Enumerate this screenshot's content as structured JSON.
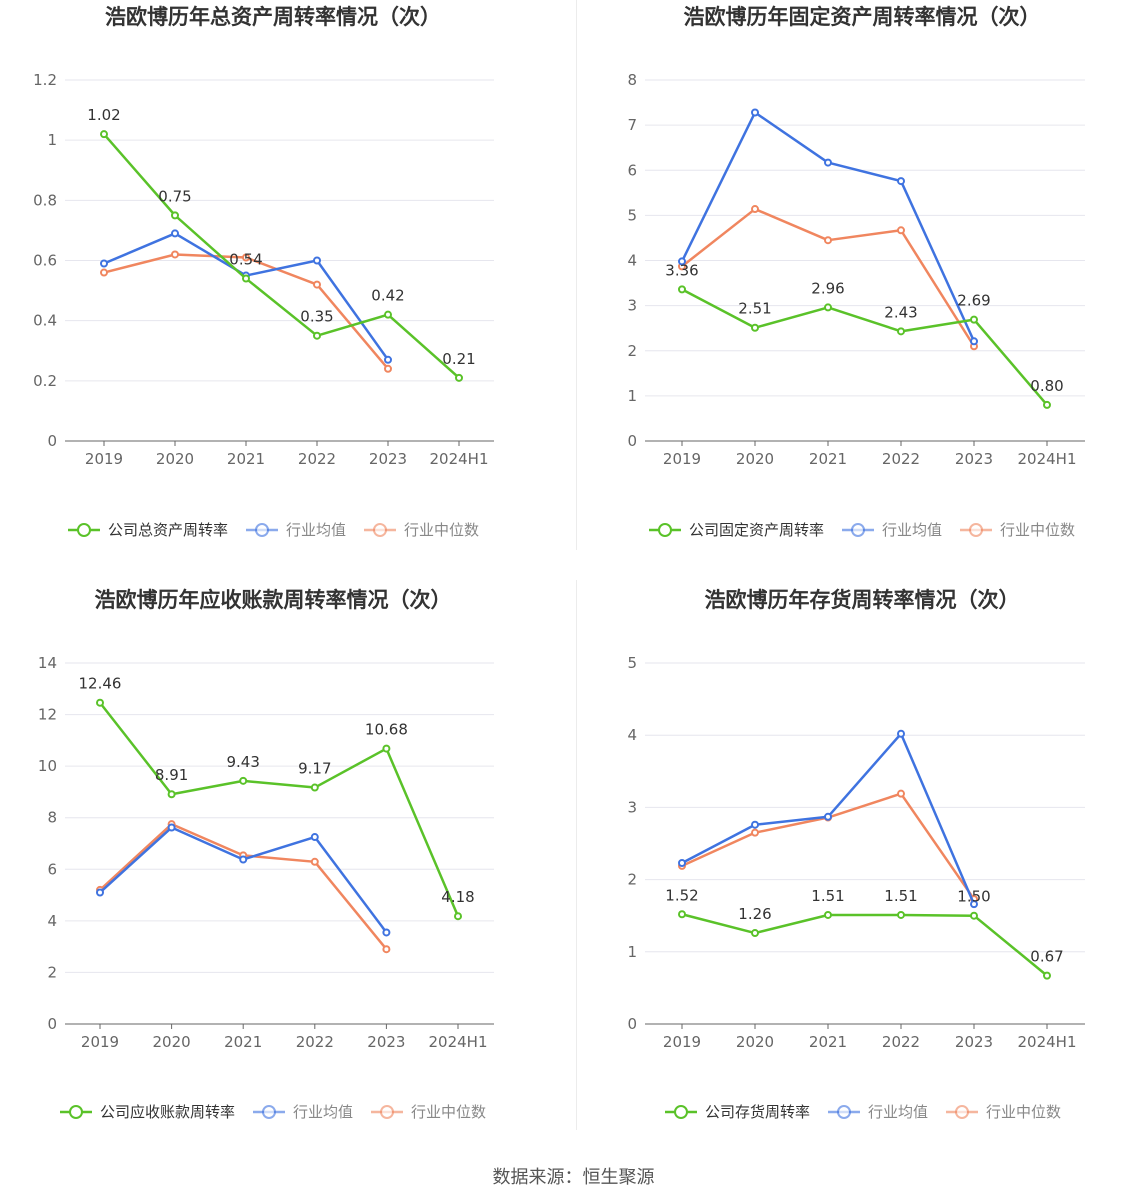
{
  "colors": {
    "company": "#5ac229",
    "industry_avg": "#3f73e0",
    "industry_median": "#f0865f",
    "grid": "#e6e6ee",
    "axis": "#666666"
  },
  "footer": {
    "source": "数据来源：恒生聚源"
  },
  "chart_data": [
    {
      "type": "line",
      "title": "浩欧博历年总资产周转率情况（次）",
      "categories": [
        "2019",
        "2020",
        "2021",
        "2022",
        "2023",
        "2024H1"
      ],
      "y_ticks": [
        "0",
        "0.2",
        "0.4",
        "0.6",
        "0.8",
        "1",
        "1.2"
      ],
      "ylim": [
        0,
        1.2
      ],
      "grid": true,
      "legend_position": "bottom",
      "series": [
        {
          "name": "公司总资产周转率",
          "key": "company",
          "values": [
            1.02,
            0.75,
            0.54,
            0.35,
            0.42,
            0.21
          ],
          "labels": [
            "1.02",
            "0.75",
            "0.54",
            "0.35",
            "0.42",
            "0.21"
          ]
        },
        {
          "name": "行业均值",
          "key": "industry_avg",
          "values": [
            0.59,
            0.69,
            0.55,
            0.6,
            0.27,
            null
          ]
        },
        {
          "name": "行业中位数",
          "key": "industry_median",
          "values": [
            0.56,
            0.62,
            0.61,
            0.52,
            0.24,
            null
          ]
        }
      ]
    },
    {
      "type": "line",
      "title": "浩欧博历年固定资产周转率情况（次）",
      "categories": [
        "2019",
        "2020",
        "2021",
        "2022",
        "2023",
        "2024H1"
      ],
      "y_ticks": [
        "0",
        "1",
        "2",
        "3",
        "4",
        "5",
        "6",
        "7",
        "8"
      ],
      "ylim": [
        0,
        8
      ],
      "grid": true,
      "legend_position": "bottom",
      "series": [
        {
          "name": "公司固定资产周转率",
          "key": "company",
          "values": [
            3.36,
            2.51,
            2.96,
            2.43,
            2.69,
            0.8
          ],
          "labels": [
            "3.36",
            "2.51",
            "2.96",
            "2.43",
            "2.69",
            "0.80"
          ]
        },
        {
          "name": "行业均值",
          "key": "industry_avg",
          "values": [
            3.98,
            7.28,
            6.17,
            5.76,
            2.21,
            null
          ]
        },
        {
          "name": "行业中位数",
          "key": "industry_median",
          "values": [
            3.87,
            5.14,
            4.45,
            4.67,
            2.1,
            null
          ]
        }
      ]
    },
    {
      "type": "line",
      "title": "浩欧博历年应收账款周转率情况（次）",
      "categories": [
        "2019",
        "2020",
        "2021",
        "2022",
        "2023",
        "2024H1"
      ],
      "y_ticks": [
        "0",
        "2",
        "4",
        "6",
        "8",
        "10",
        "12",
        "14"
      ],
      "ylim": [
        0,
        14
      ],
      "grid": true,
      "legend_position": "bottom",
      "series": [
        {
          "name": "公司应收账款周转率",
          "key": "company",
          "values": [
            12.46,
            8.91,
            9.43,
            9.17,
            10.68,
            4.18
          ],
          "labels": [
            "12.46",
            "8.91",
            "9.43",
            "9.17",
            "10.68",
            "4.18"
          ]
        },
        {
          "name": "行业均值",
          "key": "industry_avg",
          "values": [
            5.1,
            7.62,
            6.38,
            7.25,
            3.55,
            null
          ]
        },
        {
          "name": "行业中位数",
          "key": "industry_median",
          "values": [
            5.2,
            7.75,
            6.54,
            6.29,
            2.9,
            null
          ]
        }
      ]
    },
    {
      "type": "line",
      "title": "浩欧博历年存货周转率情况（次）",
      "categories": [
        "2019",
        "2020",
        "2021",
        "2022",
        "2023",
        "2024H1"
      ],
      "y_ticks": [
        "0",
        "1",
        "2",
        "3",
        "4",
        "5"
      ],
      "ylim": [
        0,
        5
      ],
      "grid": true,
      "legend_position": "bottom",
      "series": [
        {
          "name": "公司存货周转率",
          "key": "company",
          "values": [
            1.52,
            1.26,
            1.51,
            1.51,
            1.5,
            0.67
          ],
          "labels": [
            "1.52",
            "1.26",
            "1.51",
            "1.51",
            "1.50",
            "0.67"
          ]
        },
        {
          "name": "行业均值",
          "key": "industry_avg",
          "values": [
            2.23,
            2.76,
            2.87,
            4.02,
            1.66,
            null
          ]
        },
        {
          "name": "行业中位数",
          "key": "industry_median",
          "values": [
            2.19,
            2.65,
            2.86,
            3.19,
            1.73,
            null
          ]
        }
      ]
    }
  ]
}
